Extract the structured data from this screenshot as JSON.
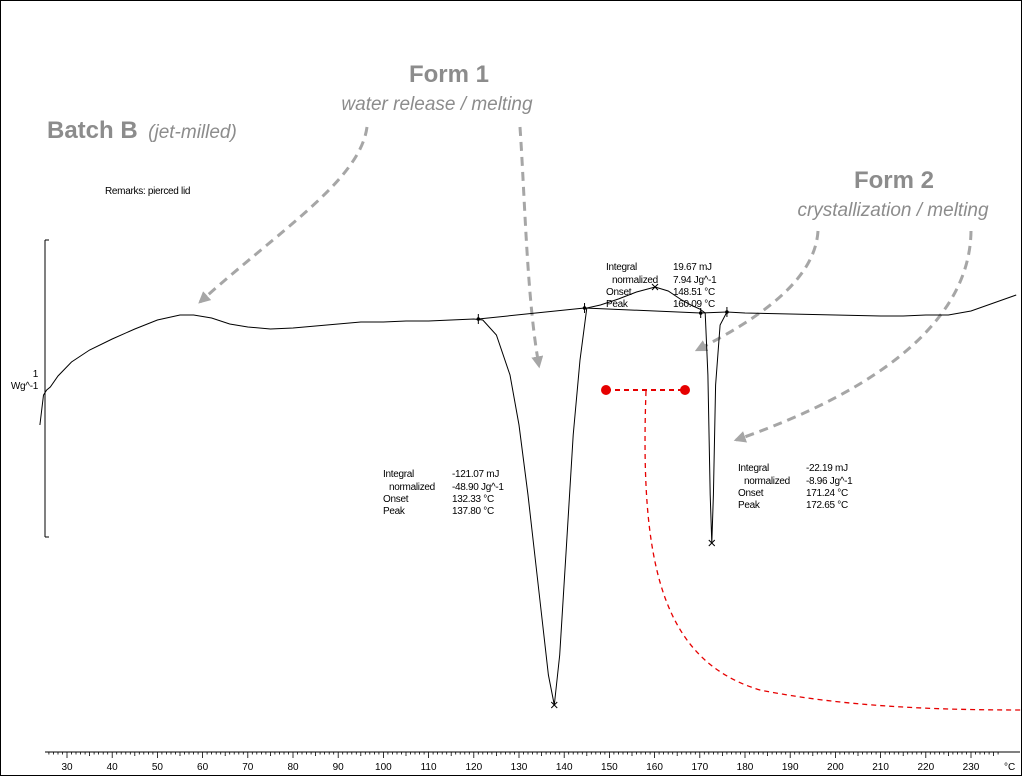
{
  "chart_data": {
    "type": "line",
    "title": "",
    "xlabel": "",
    "ylabel": "",
    "x_unit": "°C",
    "xlim": [
      23,
      240
    ],
    "scale_bar": {
      "value": "1",
      "unit": "Wg^-1"
    },
    "x_ticks": [
      30,
      40,
      50,
      60,
      70,
      80,
      90,
      100,
      110,
      120,
      130,
      140,
      150,
      160,
      170,
      180,
      190,
      200,
      210,
      220,
      230
    ],
    "series": [
      {
        "x": [
          24,
          24.8,
          25.5,
          26.3,
          28,
          31,
          35,
          40,
          45,
          50,
          55,
          58,
          62,
          66,
          70,
          75,
          80,
          85,
          90,
          95,
          100,
          105,
          110,
          115,
          120,
          122,
          125,
          128,
          130,
          132,
          133.5,
          135,
          136.5,
          137.8,
          139,
          140.5,
          142,
          143.5,
          145,
          148,
          152,
          156,
          160.1,
          163,
          166,
          168,
          170,
          171.2,
          171.8,
          172.3,
          172.65,
          173,
          173.5,
          174.5,
          176,
          180,
          190,
          200,
          210,
          215,
          220,
          225,
          230,
          235,
          240
        ],
        "y": [
          -1.3,
          -1.0,
          -0.95,
          -0.92,
          -0.81,
          -0.67,
          -0.55,
          -0.44,
          -0.34,
          -0.25,
          -0.2,
          -0.2,
          -0.23,
          -0.29,
          -0.32,
          -0.34,
          -0.33,
          -0.31,
          -0.29,
          -0.27,
          -0.27,
          -0.26,
          -0.26,
          -0.25,
          -0.24,
          -0.25,
          -0.4,
          -0.8,
          -1.3,
          -2.0,
          -2.6,
          -3.2,
          -3.8,
          -4.1,
          -3.6,
          -2.5,
          -1.4,
          -0.65,
          -0.13,
          -0.1,
          -0.04,
          0.03,
          0.08,
          0.04,
          -0.05,
          -0.1,
          -0.14,
          -0.18,
          -0.8,
          -2.0,
          -2.48,
          -2.0,
          -0.9,
          -0.3,
          -0.17,
          -0.18,
          -0.19,
          -0.2,
          -0.21,
          -0.21,
          -0.2,
          -0.2,
          -0.16,
          -0.08,
          0.0
        ]
      }
    ],
    "baselines": [
      {
        "x": [
          121,
          144.5
        ],
        "y": [
          -0.24,
          -0.13
        ]
      },
      {
        "x": [
          144.5,
          170.2
        ],
        "y": [
          -0.13,
          -0.18
        ]
      },
      {
        "x": [
          170.2,
          176
        ],
        "y": [
          -0.18,
          -0.17
        ]
      }
    ],
    "peak_markers": [
      {
        "x": 137.8,
        "y": -4.1
      },
      {
        "x": 160.09,
        "y": 0.08
      },
      {
        "x": 172.65,
        "y": -2.48
      }
    ],
    "results": [
      {
        "integral_label": "Integral",
        "integral": "-121.07 mJ",
        "normalized_label": "normalized",
        "normalized": "-48.90 Jg^-1",
        "onset_label": "Onset",
        "onset": "132.33 °C",
        "peak_label": "Peak",
        "peak": "137.80 °C"
      },
      {
        "integral_label": "Integral",
        "integral": "19.67 mJ",
        "normalized_label": "normalized",
        "normalized": "7.94 Jg^-1",
        "onset_label": "Onset",
        "onset": "148.51 °C",
        "peak_label": "Peak",
        "peak": "160.09 °C"
      },
      {
        "integral_label": "Integral",
        "integral": "-22.19 mJ",
        "normalized_label": "normalized",
        "normalized": "-8.96 Jg^-1",
        "onset_label": "Onset",
        "onset": "171.24 °C",
        "peak_label": "Peak",
        "peak": "172.65 °C"
      }
    ],
    "remarks": "Remarks: pierced lid",
    "annotations": {
      "batch": {
        "bold": "Batch B",
        "italic": "(jet-milled)"
      },
      "form1": {
        "title": "Form 1",
        "subtitle": "water release / melting"
      },
      "form2": {
        "title": "Form 2",
        "subtitle": "crystallization / melting"
      }
    },
    "colors": {
      "curve": "#000000",
      "annotation": "#8c8c8c",
      "arrow": "#a6a6a6",
      "highlight": "#e60000"
    }
  }
}
